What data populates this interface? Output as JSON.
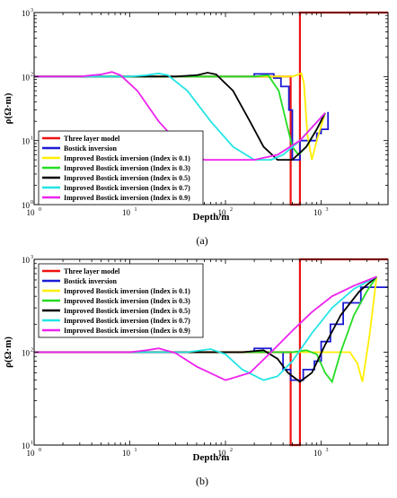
{
  "chart_data": [
    {
      "type": "line",
      "panel_label": "(a)",
      "xlabel": "Depth/m",
      "ylabel": "ρ(Ω·m)",
      "xscale": "log",
      "yscale": "log",
      "xlim": [
        1,
        5000
      ],
      "ylim": [
        1,
        1000
      ],
      "x_ticks": [
        1,
        10,
        100,
        1000
      ],
      "y_ticks": [
        1,
        10,
        100,
        1000
      ],
      "tick_base": "10",
      "tick_exponents_x": [
        "0",
        "1",
        "2",
        "3"
      ],
      "tick_exponents_y": [
        "0",
        "1",
        "2",
        "3"
      ],
      "legend_position": "bottom-left",
      "series": [
        {
          "name": "Three layer model",
          "color": "#ee1111",
          "step": true,
          "x": [
            1,
            480,
            480,
            600,
            600,
            5000
          ],
          "y": [
            100,
            100,
            1,
            1,
            1000,
            1000
          ]
        },
        {
          "name": "Bostick inversion",
          "color": "#1a1ad6",
          "step": true,
          "x": [
            1,
            200,
            200,
            320,
            320,
            380,
            380,
            460,
            460,
            500,
            500,
            600,
            600,
            900,
            900,
            1000,
            1000,
            1180,
            1180
          ],
          "y": [
            100,
            100,
            110,
            110,
            95,
            95,
            70,
            70,
            30,
            30,
            5,
            5,
            10,
            10,
            13,
            13,
            15,
            15,
            28
          ]
        },
        {
          "name": "Improved Bostick inversion (Index is 0.1)",
          "color": "#ffee00",
          "x": [
            1,
            300,
            500,
            620,
            660,
            720,
            800,
            900,
            1100
          ],
          "y": [
            100,
            100,
            100,
            112,
            80,
            12,
            5,
            10,
            27
          ]
        },
        {
          "name": "Improved Bostick inversion (Index is 0.3)",
          "color": "#22dd22",
          "x": [
            1,
            100,
            200,
            280,
            360,
            430,
            500,
            580,
            700,
            900,
            1100
          ],
          "y": [
            100,
            100,
            100,
            105,
            60,
            20,
            8,
            6,
            8,
            15,
            27
          ]
        },
        {
          "name": "Improved Bostick inversion (Index is 0.5)",
          "color": "#000000",
          "x": [
            1,
            30,
            50,
            65,
            80,
            120,
            180,
            250,
            350,
            500,
            700,
            900,
            1100
          ],
          "y": [
            100,
            100,
            105,
            115,
            108,
            60,
            20,
            8,
            5,
            5,
            8,
            15,
            27
          ]
        },
        {
          "name": "Improved Bostick inversion (Index is 0.7)",
          "color": "#22e5e5",
          "x": [
            1,
            10,
            15,
            20,
            25,
            40,
            70,
            120,
            200,
            300,
            400,
            600,
            1100
          ],
          "y": [
            100,
            100,
            105,
            112,
            105,
            60,
            20,
            8,
            5,
            5,
            6,
            10,
            27
          ]
        },
        {
          "name": "Improved Bostick inversion (Index is 0.9)",
          "color": "#ee22ee",
          "x": [
            1,
            3,
            5,
            6.5,
            8,
            12,
            20,
            35,
            60,
            100,
            200,
            350,
            600,
            1100
          ],
          "y": [
            100,
            100,
            108,
            118,
            105,
            60,
            20,
            8,
            5,
            5,
            5,
            6,
            10,
            27
          ]
        }
      ]
    },
    {
      "type": "line",
      "panel_label": "(b)",
      "xlabel": "Depth/m",
      "ylabel": "ρ(Ω·m)",
      "xscale": "log",
      "yscale": "log",
      "xlim": [
        1,
        5000
      ],
      "ylim": [
        10,
        1000
      ],
      "x_ticks": [
        1,
        10,
        100,
        1000
      ],
      "y_ticks": [
        10,
        100,
        1000
      ],
      "tick_base": "10",
      "tick_exponents_x": [
        "0",
        "1",
        "2",
        "3"
      ],
      "tick_exponents_y": [
        "1",
        "2",
        "3"
      ],
      "legend_position": "top-left",
      "series": [
        {
          "name": "Three layer model",
          "color": "#ee1111",
          "step": true,
          "x": [
            1,
            480,
            480,
            600,
            600,
            5000
          ],
          "y": [
            100,
            100,
            10,
            10,
            1000,
            1000
          ]
        },
        {
          "name": "Bostick inversion",
          "color": "#1a1ad6",
          "step": true,
          "x": [
            1,
            200,
            200,
            300,
            300,
            400,
            400,
            480,
            480,
            650,
            650,
            850,
            850,
            1000,
            1000,
            1250,
            1250,
            1700,
            1700,
            2600,
            2600,
            4000,
            4000,
            5000
          ],
          "y": [
            100,
            100,
            110,
            110,
            100,
            100,
            65,
            65,
            50,
            50,
            65,
            65,
            80,
            80,
            130,
            130,
            200,
            200,
            340,
            340,
            500,
            500,
            500,
            500
          ]
        },
        {
          "name": "Improved Bostick inversion (Index is 0.1)",
          "color": "#ffee00",
          "x": [
            1,
            1500,
            2000,
            2400,
            2700,
            3200,
            3800
          ],
          "y": [
            100,
            100,
            100,
            75,
            48,
            150,
            650
          ]
        },
        {
          "name": "Improved Bostick inversion (Index is 0.3)",
          "color": "#22dd22",
          "x": [
            1,
            500,
            700,
            900,
            1100,
            1300,
            1600,
            2200,
            3000,
            3800
          ],
          "y": [
            100,
            100,
            105,
            95,
            60,
            48,
            100,
            250,
            450,
            650
          ]
        },
        {
          "name": "Improved Bostick inversion (Index is 0.5)",
          "color": "#000000",
          "x": [
            1,
            150,
            250,
            350,
            450,
            600,
            800,
            1100,
            1600,
            2500,
            3800
          ],
          "y": [
            100,
            100,
            105,
            85,
            60,
            48,
            60,
            120,
            250,
            450,
            650
          ]
        },
        {
          "name": "Improved Bostick inversion (Index is 0.7)",
          "color": "#22e5e5",
          "x": [
            1,
            40,
            70,
            100,
            150,
            250,
            350,
            500,
            800,
            1300,
            2200,
            3800
          ],
          "y": [
            100,
            100,
            108,
            95,
            65,
            50,
            55,
            80,
            160,
            300,
            480,
            650
          ]
        },
        {
          "name": "Improved Bostick inversion (Index is 0.9)",
          "color": "#ee22ee",
          "x": [
            1,
            10,
            15,
            20,
            30,
            50,
            100,
            180,
            300,
            500,
            800,
            1300,
            2200,
            3800
          ],
          "y": [
            100,
            100,
            105,
            110,
            98,
            70,
            50,
            60,
            100,
            170,
            270,
            400,
            520,
            650
          ]
        }
      ]
    }
  ]
}
